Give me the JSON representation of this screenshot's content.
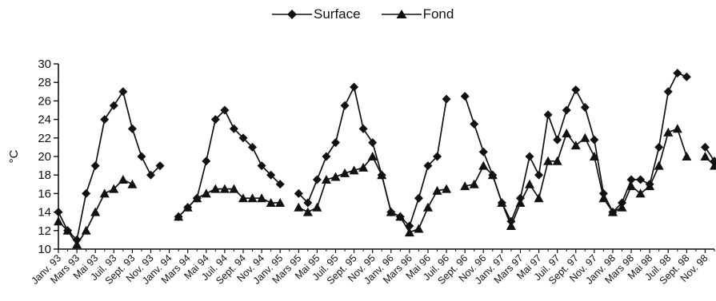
{
  "chart_data": {
    "type": "line",
    "title": "",
    "xlabel": "",
    "ylabel": "°C",
    "ylim": [
      10,
      30
    ],
    "yticks": [
      10,
      12,
      14,
      16,
      18,
      20,
      22,
      24,
      26,
      28,
      30
    ],
    "legend": "top-center",
    "grid": false,
    "x_tick_labels": [
      "Janv. 93",
      "Mars 93",
      "Mai 93",
      "Juil. 93",
      "Sept. 93",
      "Nov. 93",
      "Janv. 94",
      "Mars 94",
      "Mai 94",
      "Juil. 94",
      "Sept. 94",
      "Nov. 94",
      "Janv. 95",
      "Mars 95",
      "Mai 95",
      "Juil. 95",
      "Sept. 95",
      "Nov. 95",
      "Janv. 96",
      "Mars 96",
      "Mai 96",
      "Juil. 96",
      "Sept. 96",
      "Nov. 96",
      "Janv. 97",
      "Mars 97",
      "Mai 97",
      "Juil. 97",
      "Sept. 97",
      "Nov. 97",
      "Janv. 98",
      "Mars 98",
      "Mai 98",
      "Juil. 98",
      "Sept. 98",
      "Nov. 98"
    ],
    "series": [
      {
        "name": "Surface",
        "marker": "diamond",
        "color": "#111111",
        "values": [
          14.0,
          12.0,
          11.0,
          16.0,
          19.0,
          24.0,
          25.5,
          27.0,
          23.0,
          20.0,
          18.0,
          19.0,
          null,
          13.5,
          14.5,
          15.5,
          19.5,
          24.0,
          25.0,
          23.0,
          22.0,
          21.0,
          19.0,
          18.0,
          17.0,
          null,
          16.0,
          15.0,
          17.5,
          20.0,
          21.5,
          25.5,
          27.5,
          23.0,
          21.5,
          18.0,
          14.0,
          13.5,
          12.5,
          15.5,
          19.0,
          20.0,
          26.2,
          null,
          26.5,
          23.5,
          20.5,
          18.0,
          15.0,
          13.0,
          15.5,
          20.0,
          18.0,
          24.5,
          21.8,
          25.0,
          27.2,
          25.3,
          21.8,
          16.0,
          14.0,
          15.0,
          17.5,
          17.5,
          17.0,
          21.0,
          27.0,
          29.0,
          28.6,
          null,
          21.0,
          19.5
        ]
      },
      {
        "name": "Fond",
        "marker": "triangle",
        "color": "#111111",
        "values": [
          13.0,
          12.0,
          10.5,
          12.0,
          14.0,
          16.0,
          16.5,
          17.5,
          17.0,
          null,
          null,
          null,
          null,
          13.5,
          14.5,
          15.5,
          16.0,
          16.5,
          16.5,
          16.5,
          15.5,
          15.5,
          15.5,
          15.0,
          15.0,
          null,
          14.5,
          14.0,
          14.5,
          17.5,
          17.8,
          18.2,
          18.5,
          18.8,
          20.0,
          18.0,
          14.0,
          13.5,
          11.8,
          12.2,
          14.5,
          16.3,
          16.5,
          null,
          16.8,
          17.0,
          19.0,
          18.0,
          15.0,
          12.5,
          15.0,
          17.0,
          15.5,
          19.5,
          19.5,
          22.5,
          21.2,
          22.0,
          20.0,
          15.5,
          14.0,
          14.5,
          16.8,
          16.0,
          16.8,
          19.0,
          22.6,
          23.0,
          20.0,
          null,
          20.0,
          19.0
        ]
      }
    ]
  },
  "legend": {
    "surface": "Surface",
    "fond": "Fond"
  }
}
